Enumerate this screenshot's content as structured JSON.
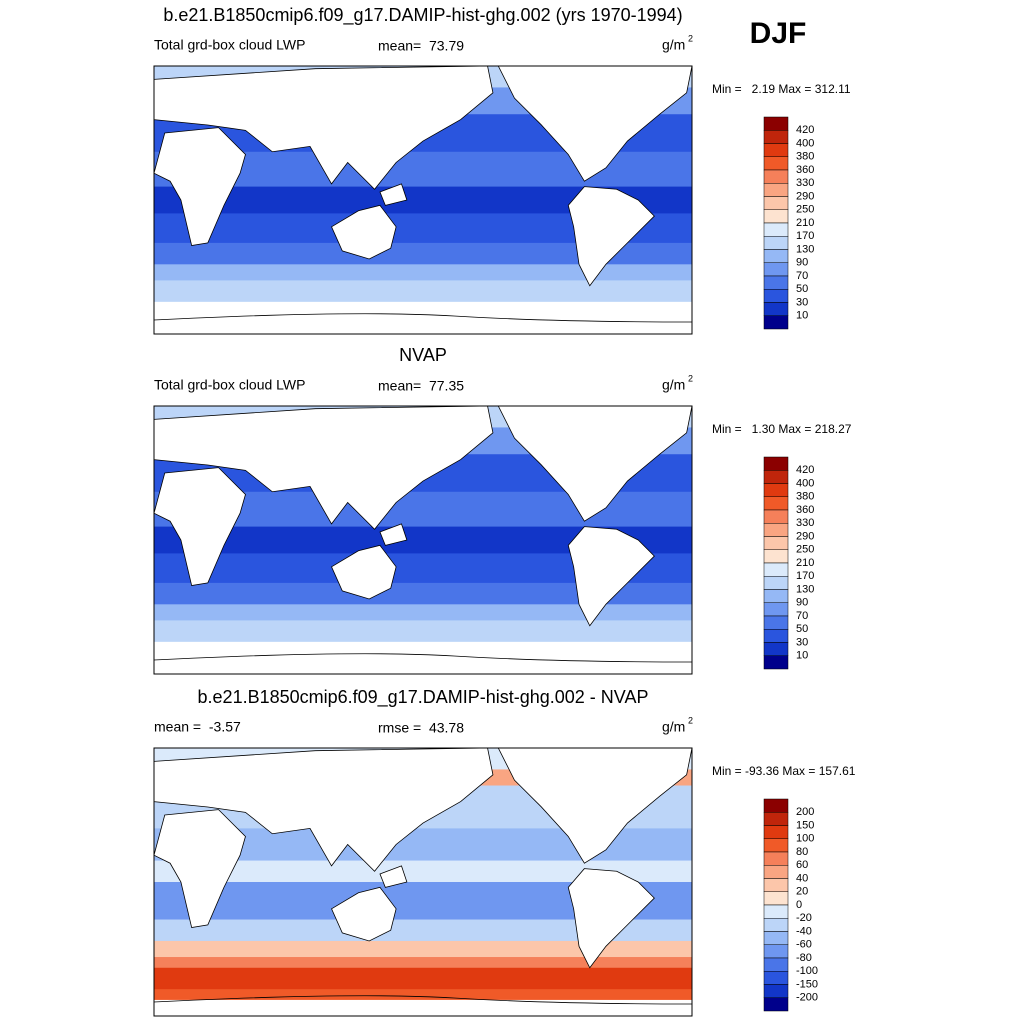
{
  "header": {
    "season": "DJF"
  },
  "panels": [
    {
      "title": "b.e21.B1850cmip6.f09_g17.DAMIP-hist-ghg.002 (yrs 1970-1994)",
      "left": "Total grd-box cloud LWP",
      "center": "mean=  73.79",
      "units": {
        "text": "g/m",
        "sup": "2"
      },
      "minmax": "Min =   2.19 Max = 312.11",
      "colorbar": {
        "labels": [
          420,
          400,
          380,
          360,
          330,
          290,
          250,
          210,
          170,
          130,
          90,
          70,
          50,
          30,
          10
        ],
        "colors": [
          "#8b0000",
          "#c0250b",
          "#e03a10",
          "#f05a28",
          "#f5805a",
          "#f9a582",
          "#fcc6aa",
          "#fde3d0",
          "#dbeafb",
          "#bcd5f8",
          "#95b8f5",
          "#6f97f0",
          "#4a75e8",
          "#2a55de",
          "#1236c8",
          "#00008b"
        ]
      }
    },
    {
      "title": "NVAP",
      "left": "Total grd-box cloud LWP",
      "center": "mean=  77.35",
      "units": {
        "text": "g/m",
        "sup": "2"
      },
      "minmax": "Min =   1.30 Max = 218.27",
      "colorbar": {
        "labels": [
          420,
          400,
          380,
          360,
          330,
          290,
          250,
          210,
          170,
          130,
          90,
          70,
          50,
          30,
          10
        ],
        "colors": [
          "#8b0000",
          "#c0250b",
          "#e03a10",
          "#f05a28",
          "#f5805a",
          "#f9a582",
          "#fcc6aa",
          "#fde3d0",
          "#dbeafb",
          "#bcd5f8",
          "#95b8f5",
          "#6f97f0",
          "#4a75e8",
          "#2a55de",
          "#1236c8",
          "#00008b"
        ]
      }
    },
    {
      "title": "b.e21.B1850cmip6.f09_g17.DAMIP-hist-ghg.002 - NVAP",
      "left": "mean =  -3.57",
      "center": "rmse =  43.78",
      "units": {
        "text": "g/m",
        "sup": "2"
      },
      "minmax": "Min = -93.36 Max = 157.61",
      "colorbar": {
        "labels": [
          200,
          150,
          100,
          80,
          60,
          40,
          20,
          0,
          -20,
          -40,
          -60,
          -80,
          -100,
          -150,
          -200
        ],
        "colors": [
          "#8b0000",
          "#c0250b",
          "#e03a10",
          "#f05a28",
          "#f5805a",
          "#f9a582",
          "#fcc6aa",
          "#fde3d0",
          "#dbeafb",
          "#bcd5f8",
          "#95b8f5",
          "#6f97f0",
          "#4a75e8",
          "#2a55de",
          "#1236c8",
          "#00008b"
        ]
      }
    }
  ]
}
